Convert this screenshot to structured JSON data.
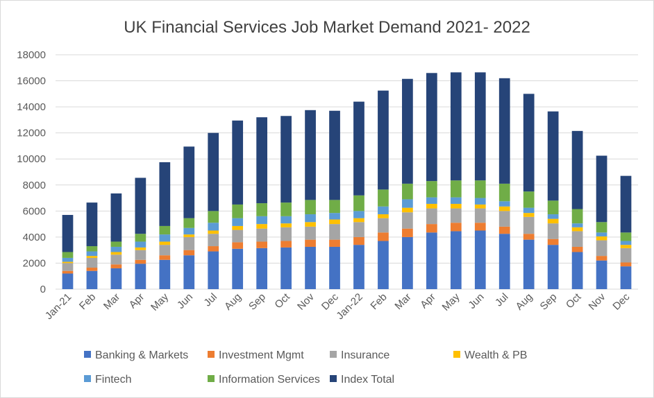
{
  "chart_data": {
    "type": "bar",
    "stacked": true,
    "title": "UK Financial Services Job Market Demand 2021- 2022",
    "xlabel": "",
    "ylabel": "",
    "ylim": [
      0,
      18000
    ],
    "yticks": [
      "0",
      "2000",
      "4000",
      "6000",
      "8000",
      "10000",
      "12000",
      "14000",
      "16000",
      "18000"
    ],
    "grid": true,
    "legend_position": "bottom",
    "categories": [
      "Jan-21",
      "Feb",
      "Mar",
      "Apr",
      "May",
      "Jun",
      "Jul",
      "Aug",
      "Sep",
      "Oct",
      "Nov",
      "Dec",
      "Jan-22",
      "Feb",
      "Mar",
      "Apr",
      "May",
      "Jun",
      "Jul",
      "Aug",
      "Sep",
      "Oct",
      "Nov",
      "Dec"
    ],
    "series": [
      {
        "name": "Banking & Markets",
        "color": "#4472c4",
        "values": [
          1200,
          1400,
          1600,
          1950,
          2250,
          2600,
          2900,
          3100,
          3150,
          3200,
          3250,
          3250,
          3400,
          3700,
          4000,
          4350,
          4450,
          4500,
          4250,
          3800,
          3400,
          2850,
          2200,
          1750
        ]
      },
      {
        "name": "Investment Mgmt",
        "color": "#ed7d31",
        "values": [
          200,
          250,
          300,
          300,
          350,
          400,
          400,
          500,
          500,
          500,
          550,
          550,
          600,
          650,
          650,
          650,
          650,
          600,
          550,
          450,
          450,
          400,
          350,
          300
        ]
      },
      {
        "name": "Insurance",
        "color": "#a5a5a5",
        "values": [
          600,
          750,
          750,
          750,
          800,
          1000,
          950,
          950,
          1000,
          1050,
          1000,
          1200,
          1150,
          1100,
          1250,
          1200,
          1100,
          1100,
          1200,
          1300,
          1200,
          1200,
          1200,
          1100
        ]
      },
      {
        "name": "Wealth & PB",
        "color": "#ffc000",
        "values": [
          100,
          150,
          200,
          200,
          250,
          200,
          250,
          300,
          350,
          300,
          350,
          350,
          300,
          300,
          350,
          350,
          350,
          300,
          350,
          300,
          350,
          300,
          300,
          250
        ]
      },
      {
        "name": "Fintech",
        "color": "#5b9bd5",
        "values": [
          300,
          350,
          400,
          450,
          550,
          500,
          600,
          600,
          600,
          550,
          600,
          500,
          550,
          600,
          650,
          500,
          500,
          500,
          400,
          400,
          350,
          300,
          300,
          300
        ]
      },
      {
        "name": "Information Services",
        "color": "#70ad47",
        "values": [
          450,
          400,
          400,
          600,
          650,
          750,
          900,
          1050,
          1000,
          1050,
          1100,
          1000,
          1200,
          1300,
          1200,
          1250,
          1300,
          1350,
          1350,
          1250,
          1050,
          1100,
          800,
          650
        ]
      },
      {
        "name": "Index Total",
        "color": "#264478",
        "values": [
          2850,
          3350,
          3700,
          4300,
          4900,
          5500,
          6000,
          6450,
          6600,
          6650,
          6900,
          6850,
          7200,
          7600,
          8050,
          8300,
          8300,
          8300,
          8100,
          7500,
          6850,
          6000,
          5100,
          4350
        ]
      }
    ]
  }
}
